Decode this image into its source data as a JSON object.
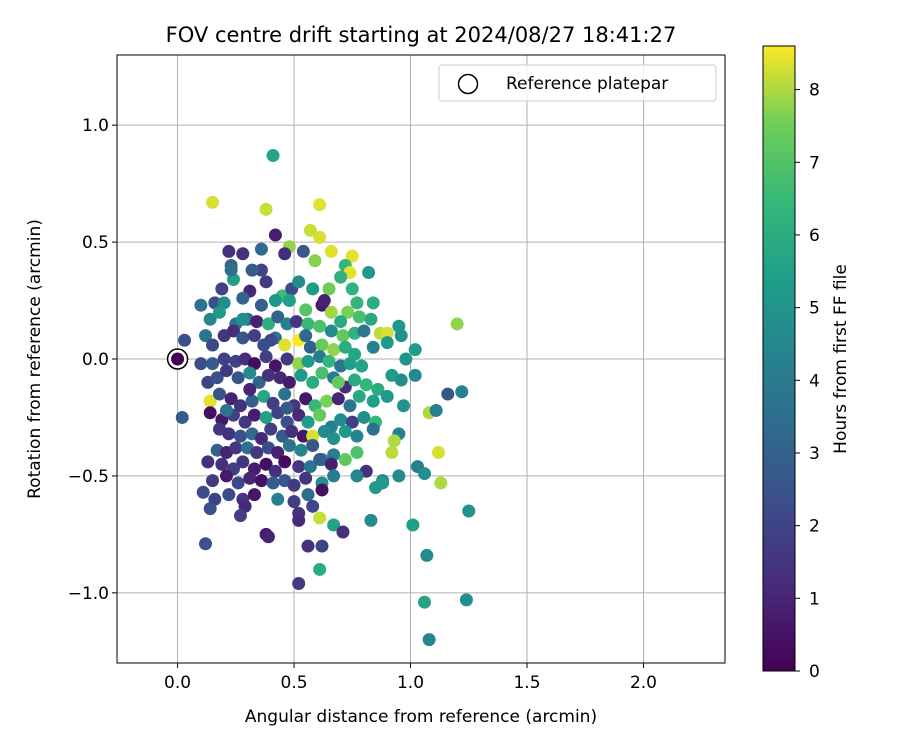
{
  "chart_data": {
    "type": "scatter",
    "title": "FOV centre drift starting at 2024/08/27 18:41:27",
    "xlabel": "Angular distance from reference (arcmin)",
    "ylabel": "Rotation from reference (arcmin)",
    "xlim": [
      -0.26,
      2.35
    ],
    "ylim": [
      -1.3,
      1.3
    ],
    "xticks": [
      "0.0",
      "0.5",
      "1.0",
      "1.5",
      "2.0"
    ],
    "yticks": [
      "−1.0",
      "−0.5",
      "0.0",
      "0.5",
      "1.0"
    ],
    "xtick_values": [
      0,
      0.5,
      1.0,
      1.5,
      2.0
    ],
    "ytick_values": [
      -1.0,
      -0.5,
      0.0,
      0.5,
      1.0
    ],
    "grid": true,
    "legend": {
      "placement": "top-right",
      "entries": [
        "Reference platepar"
      ]
    },
    "colorbar": {
      "label": "Hours from first FF file",
      "ticks": [
        "0",
        "1",
        "2",
        "3",
        "4",
        "5",
        "6",
        "7",
        "8"
      ],
      "range": [
        0,
        8.6
      ],
      "colormap": "viridis"
    },
    "reference_point": {
      "x": 0.0,
      "y": 0.0,
      "hours": 0.0
    },
    "points": [
      [
        0.41,
        0.87,
        5.6
      ],
      [
        0.15,
        0.67,
        8.3
      ],
      [
        0.38,
        0.64,
        8.2
      ],
      [
        0.61,
        0.66,
        8.4
      ],
      [
        0.57,
        0.55,
        8.2
      ],
      [
        0.42,
        0.53,
        0.8
      ],
      [
        0.61,
        0.52,
        8.3
      ],
      [
        0.66,
        0.46,
        8.4
      ],
      [
        0.75,
        0.44,
        8.4
      ],
      [
        0.48,
        0.48,
        7.8
      ],
      [
        0.22,
        0.46,
        1.4
      ],
      [
        0.28,
        0.45,
        1.4
      ],
      [
        0.36,
        0.47,
        3.3
      ],
      [
        0.46,
        0.45,
        1.2
      ],
      [
        0.54,
        0.46,
        2.7
      ],
      [
        0.59,
        0.42,
        7.7
      ],
      [
        0.72,
        0.4,
        6.4
      ],
      [
        0.82,
        0.37,
        5.2
      ],
      [
        0.74,
        0.37,
        8.4
      ],
      [
        0.23,
        0.4,
        3.1
      ],
      [
        0.24,
        0.34,
        5.4
      ],
      [
        0.36,
        0.38,
        2.0
      ],
      [
        0.38,
        0.33,
        1.7
      ],
      [
        0.31,
        0.29,
        1.0
      ],
      [
        0.45,
        0.27,
        6.6
      ],
      [
        0.49,
        0.3,
        2.2
      ],
      [
        0.58,
        0.3,
        5.3
      ],
      [
        0.65,
        0.3,
        7.5
      ],
      [
        0.7,
        0.35,
        6.2
      ],
      [
        0.75,
        0.3,
        6.2
      ],
      [
        0.84,
        0.24,
        6.0
      ],
      [
        0.77,
        0.24,
        6.3
      ],
      [
        0.19,
        0.3,
        2.0
      ],
      [
        0.16,
        0.24,
        2.4
      ],
      [
        0.1,
        0.23,
        3.6
      ],
      [
        0.2,
        0.24,
        4.7
      ],
      [
        0.28,
        0.26,
        3.2
      ],
      [
        0.36,
        0.23,
        2.9
      ],
      [
        0.42,
        0.25,
        5.1
      ],
      [
        0.48,
        0.25,
        5.4
      ],
      [
        0.55,
        0.21,
        7.1
      ],
      [
        0.62,
        0.23,
        0.7
      ],
      [
        0.66,
        0.2,
        7.9
      ],
      [
        0.73,
        0.2,
        7.6
      ],
      [
        0.78,
        0.18,
        6.8
      ],
      [
        0.83,
        0.17,
        5.8
      ],
      [
        0.87,
        0.11,
        8.1
      ],
      [
        0.9,
        0.11,
        8.3
      ],
      [
        0.95,
        0.14,
        5.1
      ],
      [
        0.96,
        0.1,
        4.9
      ],
      [
        1.2,
        0.15,
        7.8
      ],
      [
        0.98,
        0.0,
        5.0
      ],
      [
        1.02,
        0.04,
        5.3
      ],
      [
        0.14,
        0.17,
        4.5
      ],
      [
        0.18,
        0.2,
        5.2
      ],
      [
        0.25,
        0.15,
        3.8
      ],
      [
        0.3,
        0.17,
        3.4
      ],
      [
        0.34,
        0.16,
        0.9
      ],
      [
        0.39,
        0.15,
        6.1
      ],
      [
        0.43,
        0.18,
        3.0
      ],
      [
        0.47,
        0.15,
        4.3
      ],
      [
        0.51,
        0.16,
        1.5
      ],
      [
        0.56,
        0.15,
        6.5
      ],
      [
        0.61,
        0.14,
        6.9
      ],
      [
        0.66,
        0.12,
        4.6
      ],
      [
        0.71,
        0.1,
        7.3
      ],
      [
        0.76,
        0.11,
        6.2
      ],
      [
        0.8,
        0.12,
        3.9
      ],
      [
        0.84,
        0.05,
        4.3
      ],
      [
        0.9,
        0.07,
        5.2
      ],
      [
        0.12,
        0.1,
        3.8
      ],
      [
        0.15,
        0.06,
        2.1
      ],
      [
        0.2,
        0.1,
        1.5
      ],
      [
        0.24,
        0.12,
        1.2
      ],
      [
        0.28,
        0.09,
        2.6
      ],
      [
        0.33,
        0.1,
        1.8
      ],
      [
        0.37,
        0.06,
        2.3
      ],
      [
        0.42,
        0.09,
        3.6
      ],
      [
        0.46,
        0.06,
        8.4
      ],
      [
        0.52,
        0.08,
        8.6
      ],
      [
        0.57,
        0.05,
        2.9
      ],
      [
        0.62,
        0.06,
        7.4
      ],
      [
        0.67,
        0.04,
        7.8
      ],
      [
        0.72,
        0.05,
        6.0
      ],
      [
        0.76,
        0.02,
        5.7
      ],
      [
        0.03,
        0.08,
        2.4
      ],
      [
        0.1,
        -0.02,
        2.3
      ],
      [
        0.15,
        -0.02,
        2.8
      ],
      [
        0.2,
        0.0,
        1.9
      ],
      [
        0.25,
        -0.01,
        2.0
      ],
      [
        0.29,
        0.0,
        1.3
      ],
      [
        0.33,
        -0.02,
        0.3
      ],
      [
        0.38,
        0.01,
        1.9
      ],
      [
        0.42,
        -0.03,
        0.5
      ],
      [
        0.47,
        0.0,
        1.6
      ],
      [
        0.52,
        -0.02,
        7.8
      ],
      [
        0.56,
        -0.01,
        5.3
      ],
      [
        0.61,
        0.01,
        4.1
      ],
      [
        0.65,
        -0.01,
        6.4
      ],
      [
        0.7,
        -0.03,
        3.7
      ],
      [
        0.74,
        -0.02,
        5.4
      ],
      [
        0.79,
        -0.03,
        5.6
      ],
      [
        0.13,
        -0.1,
        2.0
      ],
      [
        0.17,
        -0.08,
        2.4
      ],
      [
        0.21,
        -0.05,
        1.6
      ],
      [
        0.26,
        -0.08,
        2.6
      ],
      [
        0.31,
        -0.06,
        4.7
      ],
      [
        0.35,
        -0.1,
        3.1
      ],
      [
        0.39,
        -0.07,
        1.4
      ],
      [
        0.44,
        -0.08,
        1.1
      ],
      [
        0.48,
        -0.1,
        0.7
      ],
      [
        0.53,
        -0.07,
        5.2
      ],
      [
        0.58,
        -0.1,
        6.0
      ],
      [
        0.62,
        -0.06,
        6.8
      ],
      [
        0.67,
        -0.08,
        4.0
      ],
      [
        0.72,
        -0.12,
        1.2
      ],
      [
        0.76,
        -0.09,
        5.9
      ],
      [
        0.81,
        -0.11,
        6.4
      ],
      [
        0.86,
        -0.13,
        5.9
      ],
      [
        0.92,
        -0.07,
        5.3
      ],
      [
        0.96,
        -0.09,
        4.8
      ],
      [
        1.02,
        -0.07,
        4.6
      ],
      [
        1.22,
        -0.14,
        4.3
      ],
      [
        1.16,
        -0.15,
        2.6
      ],
      [
        0.14,
        -0.18,
        8.4
      ],
      [
        0.18,
        -0.15,
        2.5
      ],
      [
        0.23,
        -0.17,
        0.9
      ],
      [
        0.27,
        -0.2,
        1.4
      ],
      [
        0.32,
        -0.18,
        2.9
      ],
      [
        0.37,
        -0.16,
        5.7
      ],
      [
        0.41,
        -0.19,
        1.8
      ],
      [
        0.46,
        -0.15,
        3.7
      ],
      [
        0.5,
        -0.2,
        1.6
      ],
      [
        0.55,
        -0.17,
        0.6
      ],
      [
        0.59,
        -0.2,
        6.5
      ],
      [
        0.64,
        -0.18,
        7.6
      ],
      [
        0.69,
        -0.17,
        1.0
      ],
      [
        0.74,
        -0.2,
        3.8
      ],
      [
        0.78,
        -0.16,
        5.8
      ],
      [
        0.84,
        -0.18,
        5.4
      ],
      [
        0.9,
        -0.16,
        5.2
      ],
      [
        0.97,
        -0.2,
        4.9
      ],
      [
        1.08,
        -0.23,
        8.0
      ],
      [
        1.11,
        -0.22,
        4.2
      ],
      [
        0.14,
        -0.23,
        0.4
      ],
      [
        0.19,
        -0.26,
        0.6
      ],
      [
        0.24,
        -0.24,
        1.9
      ],
      [
        0.29,
        -0.27,
        1.6
      ],
      [
        0.33,
        -0.24,
        0.8
      ],
      [
        0.38,
        -0.25,
        5.5
      ],
      [
        0.43,
        -0.23,
        2.0
      ],
      [
        0.47,
        -0.27,
        2.4
      ],
      [
        0.52,
        -0.24,
        1.1
      ],
      [
        0.56,
        -0.27,
        5.3
      ],
      [
        0.61,
        -0.24,
        7.4
      ],
      [
        0.66,
        -0.29,
        4.2
      ],
      [
        0.7,
        -0.26,
        4.7
      ],
      [
        0.75,
        -0.27,
        1.9
      ],
      [
        0.8,
        -0.25,
        4.8
      ],
      [
        0.85,
        -0.27,
        6.5
      ],
      [
        0.02,
        -0.25,
        2.7
      ],
      [
        0.18,
        -0.3,
        1.6
      ],
      [
        0.22,
        -0.32,
        1.4
      ],
      [
        0.27,
        -0.33,
        2.3
      ],
      [
        0.32,
        -0.32,
        3.4
      ],
      [
        0.36,
        -0.34,
        1.1
      ],
      [
        0.4,
        -0.3,
        1.8
      ],
      [
        0.45,
        -0.33,
        2.8
      ],
      [
        0.49,
        -0.31,
        1.4
      ],
      [
        0.54,
        -0.33,
        0.6
      ],
      [
        0.58,
        -0.33,
        8.3
      ],
      [
        0.63,
        -0.31,
        4.6
      ],
      [
        0.67,
        -0.34,
        4.9
      ],
      [
        0.72,
        -0.31,
        5.2
      ],
      [
        0.77,
        -0.33,
        4.4
      ],
      [
        0.84,
        -0.3,
        3.6
      ],
      [
        0.95,
        -0.32,
        4.3
      ],
      [
        0.17,
        -0.39,
        2.9
      ],
      [
        0.21,
        -0.4,
        0.9
      ],
      [
        0.25,
        -0.38,
        1.6
      ],
      [
        0.3,
        -0.38,
        3.5
      ],
      [
        0.34,
        -0.4,
        1.6
      ],
      [
        0.39,
        -0.38,
        2.3
      ],
      [
        0.43,
        -0.4,
        0.9
      ],
      [
        0.48,
        -0.37,
        3.7
      ],
      [
        0.53,
        -0.39,
        4.5
      ],
      [
        0.58,
        -0.37,
        2.6
      ],
      [
        0.62,
        -0.43,
        4.3
      ],
      [
        0.67,
        -0.41,
        4.0
      ],
      [
        0.72,
        -0.43,
        7.2
      ],
      [
        0.77,
        -0.4,
        6.9
      ],
      [
        0.92,
        -0.4,
        8.1
      ],
      [
        0.93,
        -0.35,
        8.0
      ],
      [
        0.13,
        -0.44,
        1.3
      ],
      [
        0.19,
        -0.45,
        1.3
      ],
      [
        0.24,
        -0.47,
        1.9
      ],
      [
        0.28,
        -0.44,
        1.5
      ],
      [
        0.33,
        -0.47,
        0.8
      ],
      [
        0.38,
        -0.45,
        0.4
      ],
      [
        0.42,
        -0.48,
        1.3
      ],
      [
        0.46,
        -0.44,
        0.3
      ],
      [
        0.52,
        -0.46,
        1.6
      ],
      [
        0.57,
        -0.46,
        3.8
      ],
      [
        0.61,
        -0.43,
        2.9
      ],
      [
        0.66,
        -0.45,
        0.9
      ],
      [
        0.81,
        -0.48,
        1.4
      ],
      [
        0.95,
        -0.5,
        4.6
      ],
      [
        1.03,
        -0.46,
        4.1
      ],
      [
        1.06,
        -0.49,
        4.8
      ],
      [
        1.12,
        -0.4,
        8.3
      ],
      [
        0.15,
        -0.52,
        1.7
      ],
      [
        0.21,
        -0.5,
        0.7
      ],
      [
        0.26,
        -0.53,
        2.2
      ],
      [
        0.31,
        -0.51,
        1.0
      ],
      [
        0.36,
        -0.52,
        0.4
      ],
      [
        0.41,
        -0.53,
        2.8
      ],
      [
        0.46,
        -0.52,
        2.6
      ],
      [
        0.5,
        -0.54,
        1.7
      ],
      [
        0.55,
        -0.51,
        1.5
      ],
      [
        0.62,
        -0.53,
        4.8
      ],
      [
        0.67,
        -0.5,
        4.1
      ],
      [
        0.77,
        -0.5,
        4.5
      ],
      [
        0.85,
        -0.55,
        5.2
      ],
      [
        0.88,
        -0.52,
        4.3
      ],
      [
        1.13,
        -0.53,
        8.0
      ],
      [
        0.11,
        -0.57,
        2.3
      ],
      [
        0.16,
        -0.6,
        1.9
      ],
      [
        0.22,
        -0.58,
        2.2
      ],
      [
        0.28,
        -0.6,
        1.5
      ],
      [
        0.33,
        -0.58,
        0.6
      ],
      [
        0.43,
        -0.6,
        4.2
      ],
      [
        0.5,
        -0.61,
        1.8
      ],
      [
        0.56,
        -0.58,
        3.4
      ],
      [
        0.62,
        -0.56,
        0.4
      ],
      [
        0.14,
        -0.64,
        2.4
      ],
      [
        0.29,
        -0.63,
        1.1
      ],
      [
        0.52,
        -0.66,
        1.4
      ],
      [
        0.58,
        -0.63,
        2.1
      ],
      [
        0.88,
        -0.53,
        5.2
      ],
      [
        1.25,
        -0.65,
        4.9
      ],
      [
        0.27,
        -0.67,
        1.8
      ],
      [
        0.52,
        -0.69,
        1.1
      ],
      [
        0.61,
        -0.68,
        8.2
      ],
      [
        0.67,
        -0.71,
        5.6
      ],
      [
        0.83,
        -0.69,
        4.6
      ],
      [
        1.01,
        -0.71,
        5.4
      ],
      [
        0.71,
        -0.74,
        1.3
      ],
      [
        0.38,
        -0.75,
        0.7
      ],
      [
        0.39,
        -0.76,
        0.9
      ],
      [
        0.12,
        -0.79,
        2.5
      ],
      [
        0.56,
        -0.8,
        1.4
      ],
      [
        0.62,
        -0.8,
        2.0
      ],
      [
        1.07,
        -0.84,
        4.6
      ],
      [
        0.61,
        -0.9,
        6.0
      ],
      [
        0.52,
        -0.96,
        1.7
      ],
      [
        1.06,
        -1.04,
        5.6
      ],
      [
        1.24,
        -1.03,
        4.8
      ],
      [
        1.08,
        -1.2,
        4.5
      ],
      [
        0.63,
        0.25,
        0.9
      ],
      [
        0.7,
        0.16,
        5.9
      ],
      [
        0.52,
        0.33,
        4.6
      ],
      [
        0.32,
        0.38,
        2.8
      ],
      [
        0.23,
        0.38,
        3.5
      ],
      [
        0.28,
        0.17,
        4.8
      ],
      [
        0.4,
        0.08,
        2.2
      ],
      [
        0.55,
        0.1,
        3.3
      ],
      [
        0.31,
        -0.13,
        1.0
      ],
      [
        0.69,
        -0.1,
        7.3
      ],
      [
        0.47,
        -0.21,
        2.8
      ],
      [
        0.21,
        -0.22,
        3.7
      ]
    ]
  }
}
